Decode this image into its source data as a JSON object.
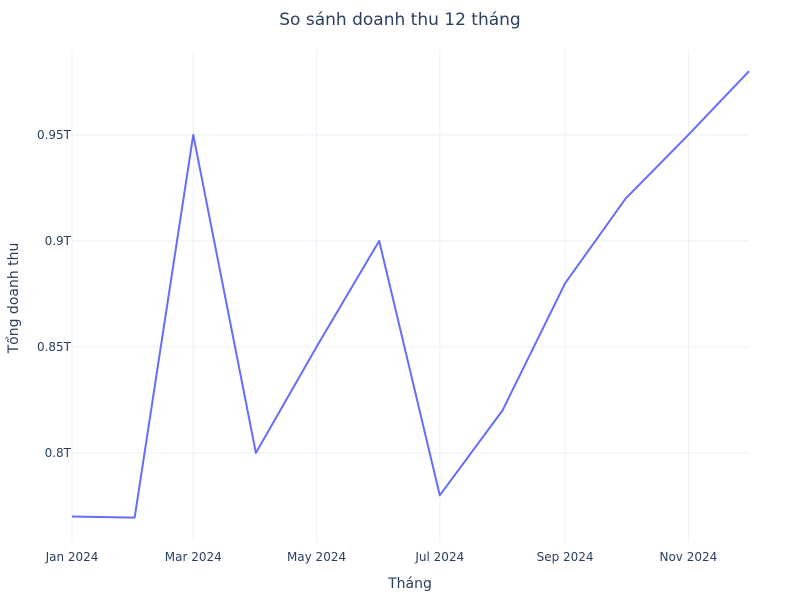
{
  "chart_data": {
    "type": "line",
    "title": "So sánh doanh thu 12 tháng",
    "xlabel": "Tháng",
    "ylabel": "Tổng doanh thu",
    "x": [
      "2024-01-01",
      "2024-02-01",
      "2024-03-01",
      "2024-04-01",
      "2024-05-01",
      "2024-06-01",
      "2024-07-01",
      "2024-08-01",
      "2024-09-01",
      "2024-10-01",
      "2024-11-01",
      "2024-12-01"
    ],
    "series": [
      {
        "values": [
          770000000000,
          769500000000,
          950000000000,
          800000000000,
          850000000000,
          900000000000,
          780000000000,
          820000000000,
          880000000000,
          920000000000,
          950000000000,
          980000000000
        ]
      }
    ],
    "x_ticks": [
      {
        "x": "2024-01-01",
        "label": "Jan 2024"
      },
      {
        "x": "2024-03-01",
        "label": "Mar 2024"
      },
      {
        "x": "2024-05-01",
        "label": "May 2024"
      },
      {
        "x": "2024-07-01",
        "label": "Jul 2024"
      },
      {
        "x": "2024-09-01",
        "label": "Sep 2024"
      },
      {
        "x": "2024-11-01",
        "label": "Nov 2024"
      }
    ],
    "y_ticks": [
      {
        "value": 800000000000,
        "label": "0.8T"
      },
      {
        "value": 850000000000,
        "label": "0.85T"
      },
      {
        "value": 900000000000,
        "label": "0.9T"
      },
      {
        "value": 950000000000,
        "label": "0.95T"
      }
    ],
    "ylim": [
      758000000000,
      990000000000
    ],
    "grid": true,
    "colors": {
      "series": "#636efa",
      "grid": "#ebf0f8",
      "text": "#2a3f5f"
    }
  }
}
